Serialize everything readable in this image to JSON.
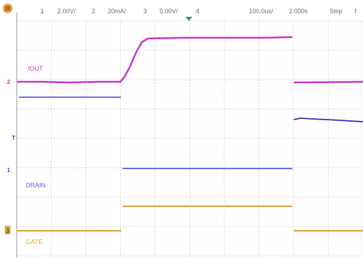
{
  "status_bar": {
    "ch1_number": "1",
    "ch1_scale": "2.00V/",
    "ch2_number": "2",
    "ch2_scale": "20mA/",
    "ch3_number": "3",
    "ch3_scale": "5.00V/",
    "ch4_number": "4",
    "timebase": "100.0us/",
    "sample_rate": "2.000s",
    "run_state": "Stop",
    "run_indicator": "f"
  },
  "traces": {
    "iout_label": "IOUT",
    "drain_label": "DRAIN",
    "gate_label": "GATE"
  },
  "markers": {
    "ref_marker": "B",
    "ch2_marker": "2",
    "trig_marker": "T",
    "ch1_marker": "1",
    "ch3_marker": "3"
  },
  "colors": {
    "grid_major": "#cdcdcd",
    "grid_minor": "#e6e6e6",
    "frame": "#9a9a9a",
    "iout": "#cc33cc",
    "drain": "#5a5af0",
    "drain_dark": "#2c2cb4",
    "gate": "#d7a83a",
    "ref_marker": "#f4a640",
    "ch2_marker_color": "#cc33cc",
    "ch1_marker_color": "#3a3ad8",
    "ch3_marker_color": "#d7a83a",
    "ch4_color": "#2faa4a",
    "trigger_color": "#3c8c8c"
  }
}
